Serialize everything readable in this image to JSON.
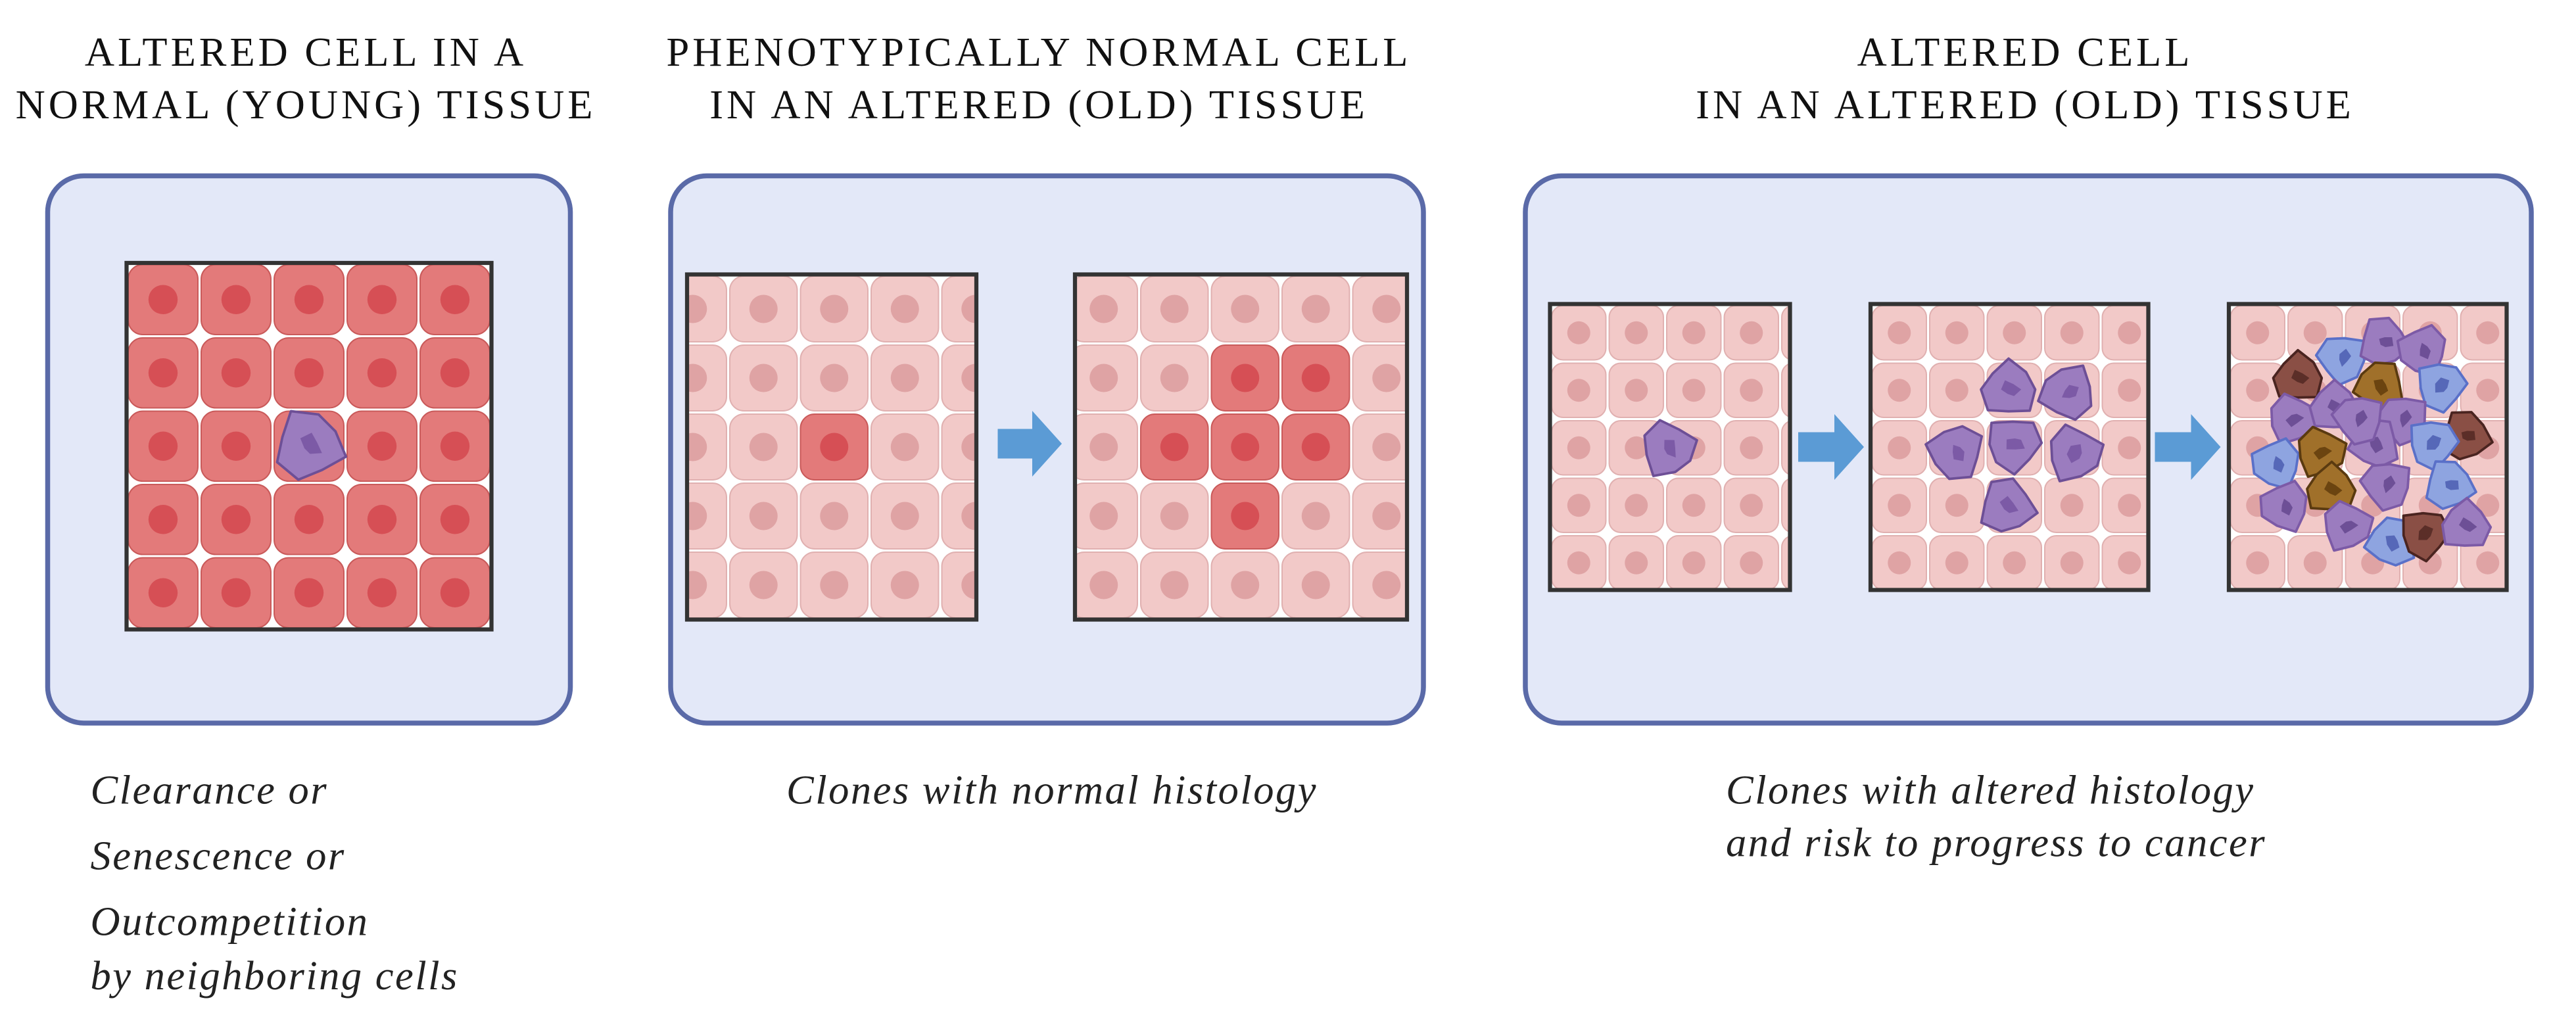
{
  "panels": [
    {
      "title": [
        "ALTERED CELL IN A",
        "NORMAL (YOUNG) TISSUE"
      ],
      "caption": [
        "Clearance or",
        "Senescence or",
        "Outcompetition",
        "by neighboring cells"
      ]
    },
    {
      "title": [
        "PHENOTYPICALLY NORMAL CELL",
        "IN AN ALTERED (OLD) TISSUE"
      ],
      "caption": [
        "Clones with normal histology"
      ]
    },
    {
      "title": [
        "ALTERED CELL",
        "IN AN ALTERED (OLD) TISSUE"
      ],
      "caption": [
        "Clones with altered histology",
        "and risk to progress to cancer"
      ]
    }
  ]
}
